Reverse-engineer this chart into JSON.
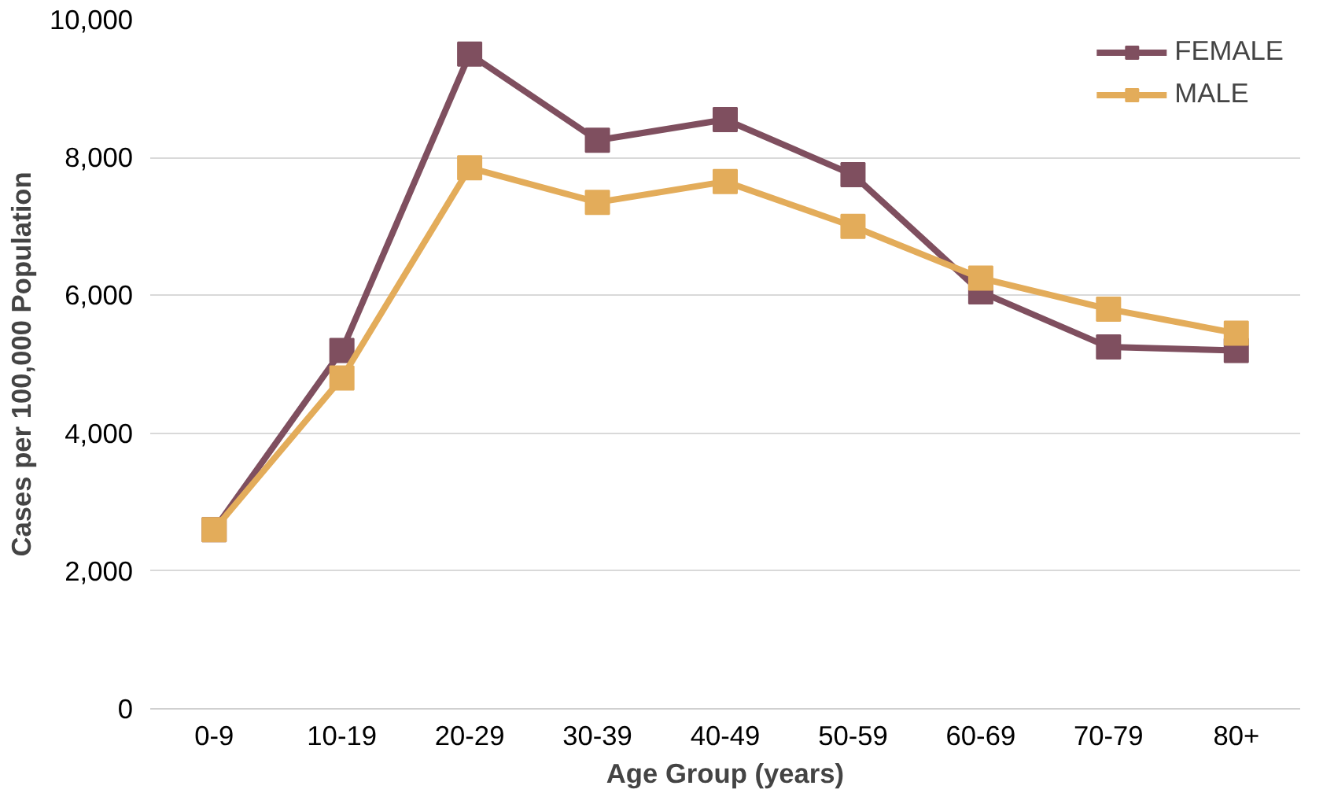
{
  "chart_data": {
    "type": "line",
    "xlabel": "Age Group (years)",
    "ylabel": "Cases per 100,000 Population",
    "categories": [
      "0-9",
      "10-19",
      "20-29",
      "30-39",
      "40-49",
      "50-59",
      "60-69",
      "70-79",
      "80+"
    ],
    "series": [
      {
        "name": "FEMALE",
        "color": "#7f4f5f",
        "values": [
          2600,
          5200,
          9500,
          8250,
          8550,
          7750,
          6050,
          5250,
          5200
        ]
      },
      {
        "name": "MALE",
        "color": "#e3ac5a",
        "values": [
          2600,
          4800,
          7850,
          7350,
          7650,
          7000,
          6250,
          5800,
          5450
        ]
      }
    ],
    "ylim": [
      0,
      10000
    ],
    "yticks": [
      {
        "value": 0,
        "label": "0"
      },
      {
        "value": 2000,
        "label": "2,000"
      },
      {
        "value": 4000,
        "label": "4,000"
      },
      {
        "value": 6000,
        "label": "6,000"
      },
      {
        "value": 8000,
        "label": "8,000"
      },
      {
        "value": 10000,
        "label": "10,000"
      }
    ],
    "grid": "y",
    "legend": "top right",
    "marker": "square",
    "line_style": "solid"
  }
}
